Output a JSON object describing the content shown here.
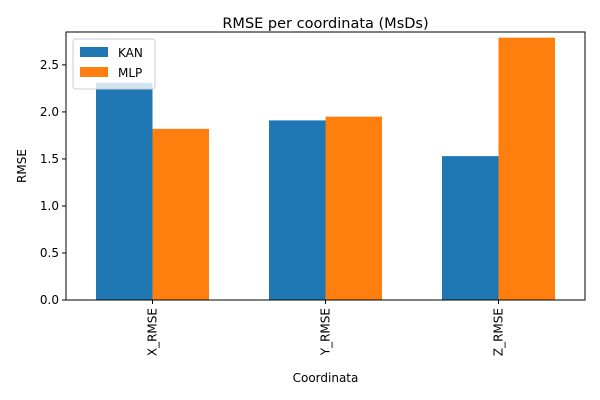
{
  "chart_data": {
    "type": "bar",
    "title": "RMSE per coordinata (MsDs)",
    "xlabel": "Coordinata",
    "ylabel": "RMSE",
    "categories": [
      "X_RMSE",
      "Y_RMSE",
      "Z_RMSE"
    ],
    "series": [
      {
        "name": "KAN",
        "color": "#1f77b4",
        "values": [
          2.31,
          1.91,
          1.53
        ]
      },
      {
        "name": "MLP",
        "color": "#ff7f0e",
        "values": [
          1.82,
          1.95,
          2.79
        ]
      }
    ],
    "ylim": [
      0,
      2.85
    ],
    "yticks": [
      0.0,
      0.5,
      1.0,
      1.5,
      2.0,
      2.5
    ],
    "ytick_labels": [
      "0.0",
      "0.5",
      "1.0",
      "1.5",
      "2.0",
      "2.5"
    ],
    "grid": false,
    "legend_position": "top-left"
  }
}
